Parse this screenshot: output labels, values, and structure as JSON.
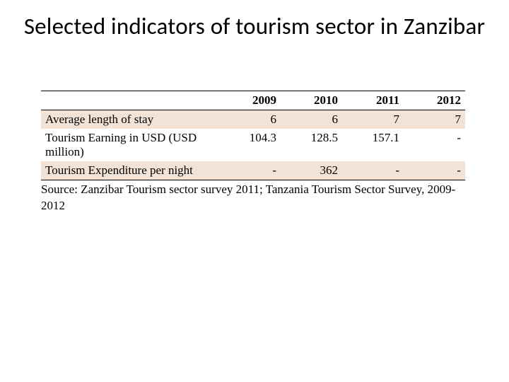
{
  "title": "Selected indicators of tourism sector in Zanzibar",
  "table": {
    "type": "table",
    "header_bg": "#ffffff",
    "alt_row_bg": "#f2e3d6",
    "border_color": "#000000",
    "text_color": "#000000",
    "font_family_body": "Times New Roman",
    "font_size_pt": 13,
    "columns": [
      "",
      "2009",
      "2010",
      "2011",
      "2012"
    ],
    "col_widths_pct": [
      42,
      14.5,
      14.5,
      14.5,
      14.5
    ],
    "alignment": [
      "left",
      "right",
      "right",
      "right",
      "right"
    ],
    "rows": [
      {
        "label": "Average length of stay",
        "cells": [
          "6",
          "6",
          "7",
          "7"
        ],
        "alt": true
      },
      {
        "label": "Tourism Earning in USD (USD million)",
        "cells": [
          "104.3",
          "128.5",
          "157.1",
          "-"
        ],
        "alt": false
      },
      {
        "label": "Tourism Expenditure per night",
        "cells": [
          "-",
          "362",
          "-",
          "-"
        ],
        "alt": true
      }
    ]
  },
  "source": "Source: Zanzibar Tourism sector survey 2011; Tanzania Tourism Sector Survey, 2009-2012"
}
